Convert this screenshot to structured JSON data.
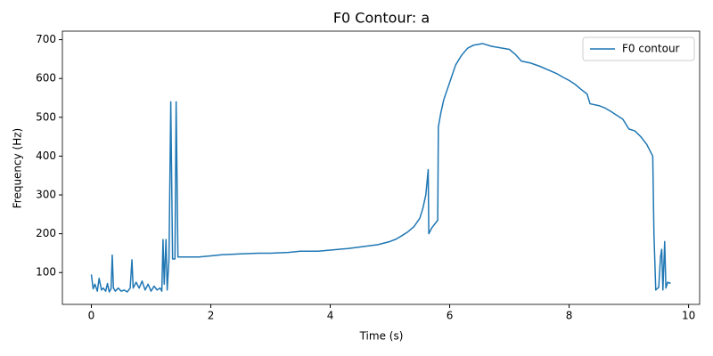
{
  "chart_data": {
    "type": "line",
    "title": "F0 Contour: a",
    "x_label": "Time (s)",
    "y_label": "Frequency (Hz)",
    "xlim": [
      -0.485,
      10.185
    ],
    "ylim": [
      18,
      722
    ],
    "xticks": [
      0,
      2,
      4,
      6,
      8,
      10
    ],
    "yticks": [
      100,
      200,
      300,
      400,
      500,
      600,
      700
    ],
    "grid": false,
    "legend": "upper right",
    "series": [
      {
        "name": "F0 contour",
        "color": "#1f77b4",
        "x": [
          0,
          0.03,
          0.06,
          0.1,
          0.13,
          0.17,
          0.2,
          0.24,
          0.27,
          0.3,
          0.33,
          0.35,
          0.37,
          0.4,
          0.45,
          0.5,
          0.55,
          0.6,
          0.65,
          0.68,
          0.7,
          0.75,
          0.8,
          0.85,
          0.9,
          0.95,
          1.0,
          1.05,
          1.1,
          1.15,
          1.18,
          1.2,
          1.22,
          1.25,
          1.27,
          1.3,
          1.33,
          1.36,
          1.4,
          1.42,
          1.45,
          1.6,
          1.8,
          2.0,
          2.2,
          2.5,
          2.8,
          3.0,
          3.3,
          3.5,
          3.8,
          4.0,
          4.3,
          4.5,
          4.8,
          5.0,
          5.1,
          5.2,
          5.3,
          5.4,
          5.5,
          5.55,
          5.6,
          5.64,
          5.65,
          5.7,
          5.8,
          5.81,
          5.85,
          5.9,
          6.0,
          6.1,
          6.2,
          6.3,
          6.4,
          6.55,
          6.7,
          6.85,
          7.0,
          7.1,
          7.2,
          7.35,
          7.5,
          7.65,
          7.8,
          7.9,
          8.0,
          8.1,
          8.2,
          8.3,
          8.35,
          8.5,
          8.6,
          8.7,
          8.8,
          8.9,
          9.0,
          9.1,
          9.2,
          9.3,
          9.4,
          9.42,
          9.45,
          9.5,
          9.53,
          9.55,
          9.57,
          9.6,
          9.62,
          9.65,
          9.7
        ],
        "values": [
          95,
          58,
          70,
          52,
          85,
          55,
          60,
          52,
          72,
          50,
          58,
          145,
          60,
          52,
          60,
          52,
          55,
          50,
          60,
          133,
          60,
          75,
          60,
          78,
          55,
          70,
          52,
          65,
          55,
          60,
          52,
          185,
          70,
          185,
          55,
          135,
          540,
          135,
          135,
          540,
          140,
          140,
          140,
          143,
          146,
          148,
          150,
          150,
          152,
          155,
          155,
          158,
          162,
          166,
          172,
          180,
          186,
          195,
          205,
          218,
          240,
          265,
          300,
          365,
          200,
          215,
          235,
          475,
          510,
          545,
          590,
          635,
          660,
          678,
          686,
          690,
          683,
          679,
          675,
          662,
          645,
          640,
          632,
          622,
          612,
          603,
          595,
          585,
          572,
          560,
          535,
          530,
          524,
          515,
          505,
          495,
          470,
          465,
          450,
          430,
          400,
          200,
          55,
          62,
          140,
          160,
          55,
          180,
          60,
          75,
          72
        ]
      }
    ]
  }
}
